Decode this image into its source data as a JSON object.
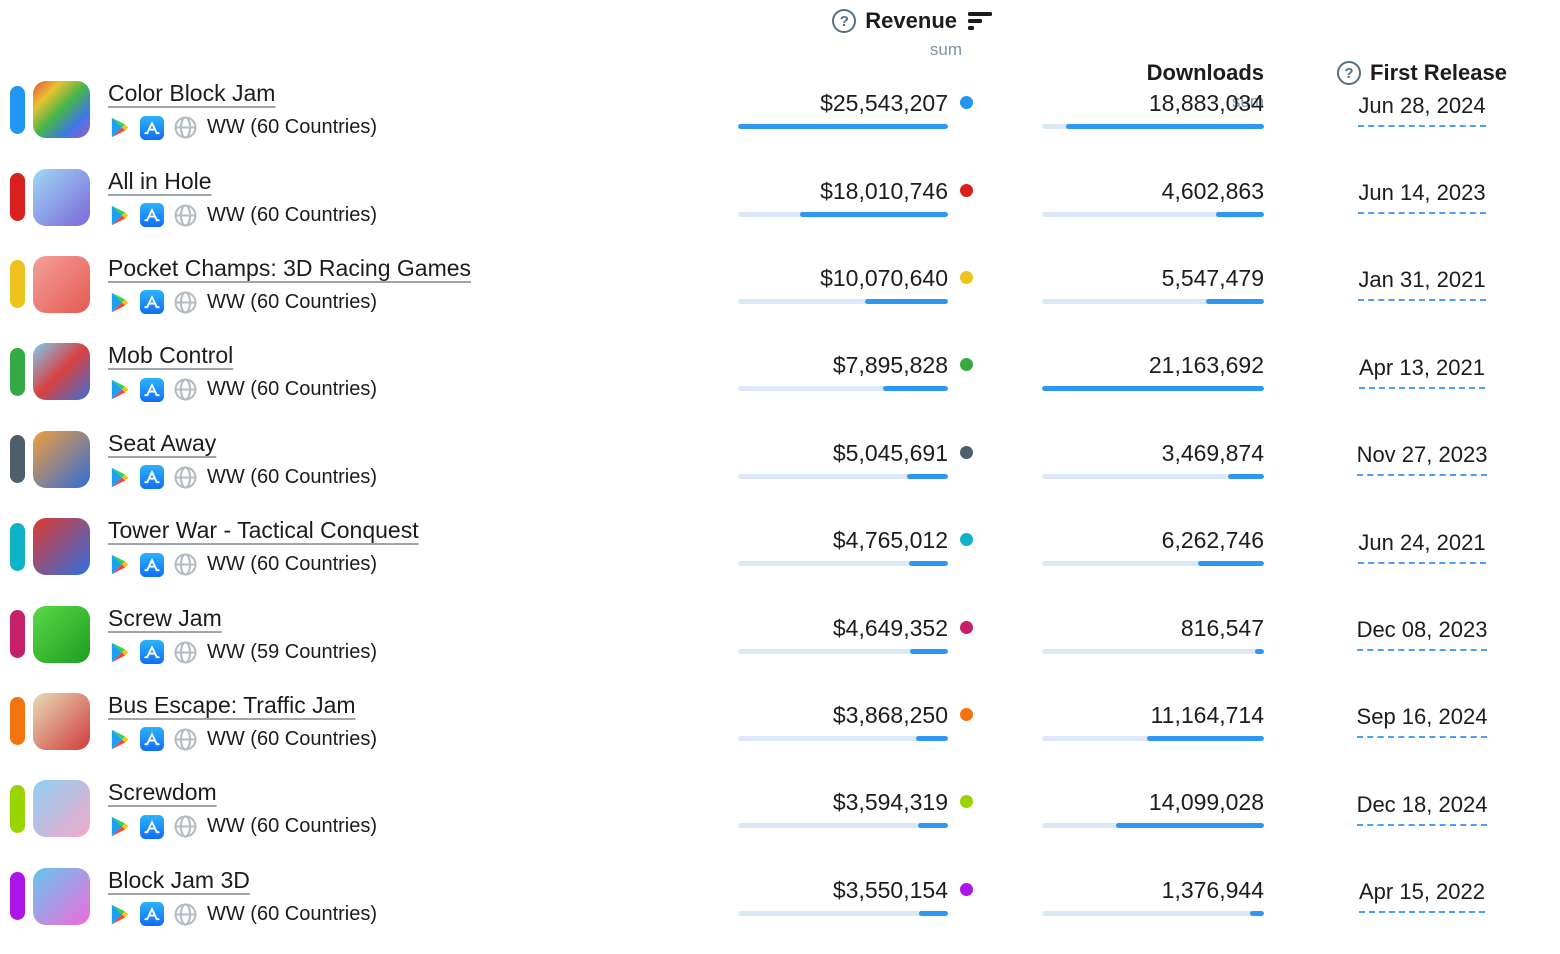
{
  "header": {
    "revenue": {
      "label": "Revenue",
      "sub": "sum",
      "help_icon": "question-circle-icon",
      "sort_icon": "sort-descending-icon"
    },
    "downloads": {
      "label": "Downloads",
      "sub": "sum"
    },
    "first_release": {
      "label": "First Release",
      "help_icon": "question-circle-icon"
    }
  },
  "platform_icons": [
    "google-play-icon",
    "app-store-icon",
    "globe-icon"
  ],
  "colors": {
    "bar_fill": "#2e96f3",
    "bar_track": "#dce8f7",
    "date_underline": "#4d9ef7",
    "name_underline": "#a0a6ad",
    "help_icon": "#547086",
    "sub_label": "#7e96a8"
  },
  "rows": [
    {
      "name": "Color Block Jam",
      "region": "WW (60 Countries)",
      "revenue": "$25,543,207",
      "revenue_value": 25543207,
      "downloads": "18,883,034",
      "downloads_value": 18883034,
      "first_release": "Jun 28, 2024",
      "series_color": "#2196f3",
      "icon_gradient": [
        "#e5533f",
        "#e8c22e",
        "#46b54a",
        "#3f78e5",
        "#9b59d0"
      ]
    },
    {
      "name": "All in Hole",
      "region": "WW (60 Countries)",
      "revenue": "$18,010,746",
      "revenue_value": 18010746,
      "downloads": "4,602,863",
      "downloads_value": 4602863,
      "first_release": "Jun 14, 2023",
      "series_color": "#da201c",
      "icon_gradient": [
        "#9ed7f5",
        "#7b68d9"
      ]
    },
    {
      "name": "Pocket Champs: 3D Racing Games",
      "region": "WW (60 Countries)",
      "revenue": "$10,070,640",
      "revenue_value": 10070640,
      "downloads": "5,547,479",
      "downloads_value": 5547479,
      "first_release": "Jan 31, 2021",
      "series_color": "#eec31d",
      "icon_gradient": [
        "#f4a09a",
        "#e45a50"
      ]
    },
    {
      "name": "Mob Control",
      "region": "WW (60 Countries)",
      "revenue": "$7,895,828",
      "revenue_value": 7895828,
      "downloads": "21,163,692",
      "downloads_value": 21163692,
      "first_release": "Apr 13, 2021",
      "series_color": "#35aa44",
      "icon_gradient": [
        "#7ccdf0",
        "#d94040",
        "#3b6fd8"
      ]
    },
    {
      "name": "Seat Away",
      "region": "WW (60 Countries)",
      "revenue": "$5,045,691",
      "revenue_value": 5045691,
      "downloads": "3,469,874",
      "downloads_value": 3469874,
      "first_release": "Nov 27, 2023",
      "series_color": "#4d5f6b",
      "icon_gradient": [
        "#f0a03c",
        "#2f6bd8"
      ]
    },
    {
      "name": "Tower War - Tactical Conquest",
      "region": "WW (60 Countries)",
      "revenue": "$4,765,012",
      "revenue_value": 4765012,
      "downloads": "6,262,746",
      "downloads_value": 6262746,
      "first_release": "Jun 24, 2021",
      "series_color": "#10b2c7",
      "icon_gradient": [
        "#e03a2f",
        "#2f6fe0"
      ]
    },
    {
      "name": "Screw Jam",
      "region": "WW (59 Countries)",
      "revenue": "$4,649,352",
      "revenue_value": 4649352,
      "downloads": "816,547",
      "downloads_value": 816547,
      "first_release": "Dec 08, 2023",
      "series_color": "#c52069",
      "icon_gradient": [
        "#59d948",
        "#1f9c1f"
      ]
    },
    {
      "name": "Bus Escape: Traffic Jam",
      "region": "WW (60 Countries)",
      "revenue": "$3,868,250",
      "revenue_value": 3868250,
      "downloads": "11,164,714",
      "downloads_value": 11164714,
      "first_release": "Sep 16, 2024",
      "series_color": "#f3740f",
      "icon_gradient": [
        "#e8dcb8",
        "#cf3b3b"
      ]
    },
    {
      "name": "Screwdom",
      "region": "WW (60 Countries)",
      "revenue": "$3,594,319",
      "revenue_value": 3594319,
      "downloads": "14,099,028",
      "downloads_value": 14099028,
      "first_release": "Dec 18, 2024",
      "series_color": "#9ad400",
      "icon_gradient": [
        "#8fd0f5",
        "#f3a8c8"
      ]
    },
    {
      "name": "Block Jam 3D",
      "region": "WW (60 Countries)",
      "revenue": "$3,550,154",
      "revenue_value": 3550154,
      "downloads": "1,376,944",
      "downloads_value": 1376944,
      "first_release": "Apr 15, 2022",
      "series_color": "#ac14e8",
      "icon_gradient": [
        "#64c8f0",
        "#f06ad8"
      ]
    }
  ]
}
